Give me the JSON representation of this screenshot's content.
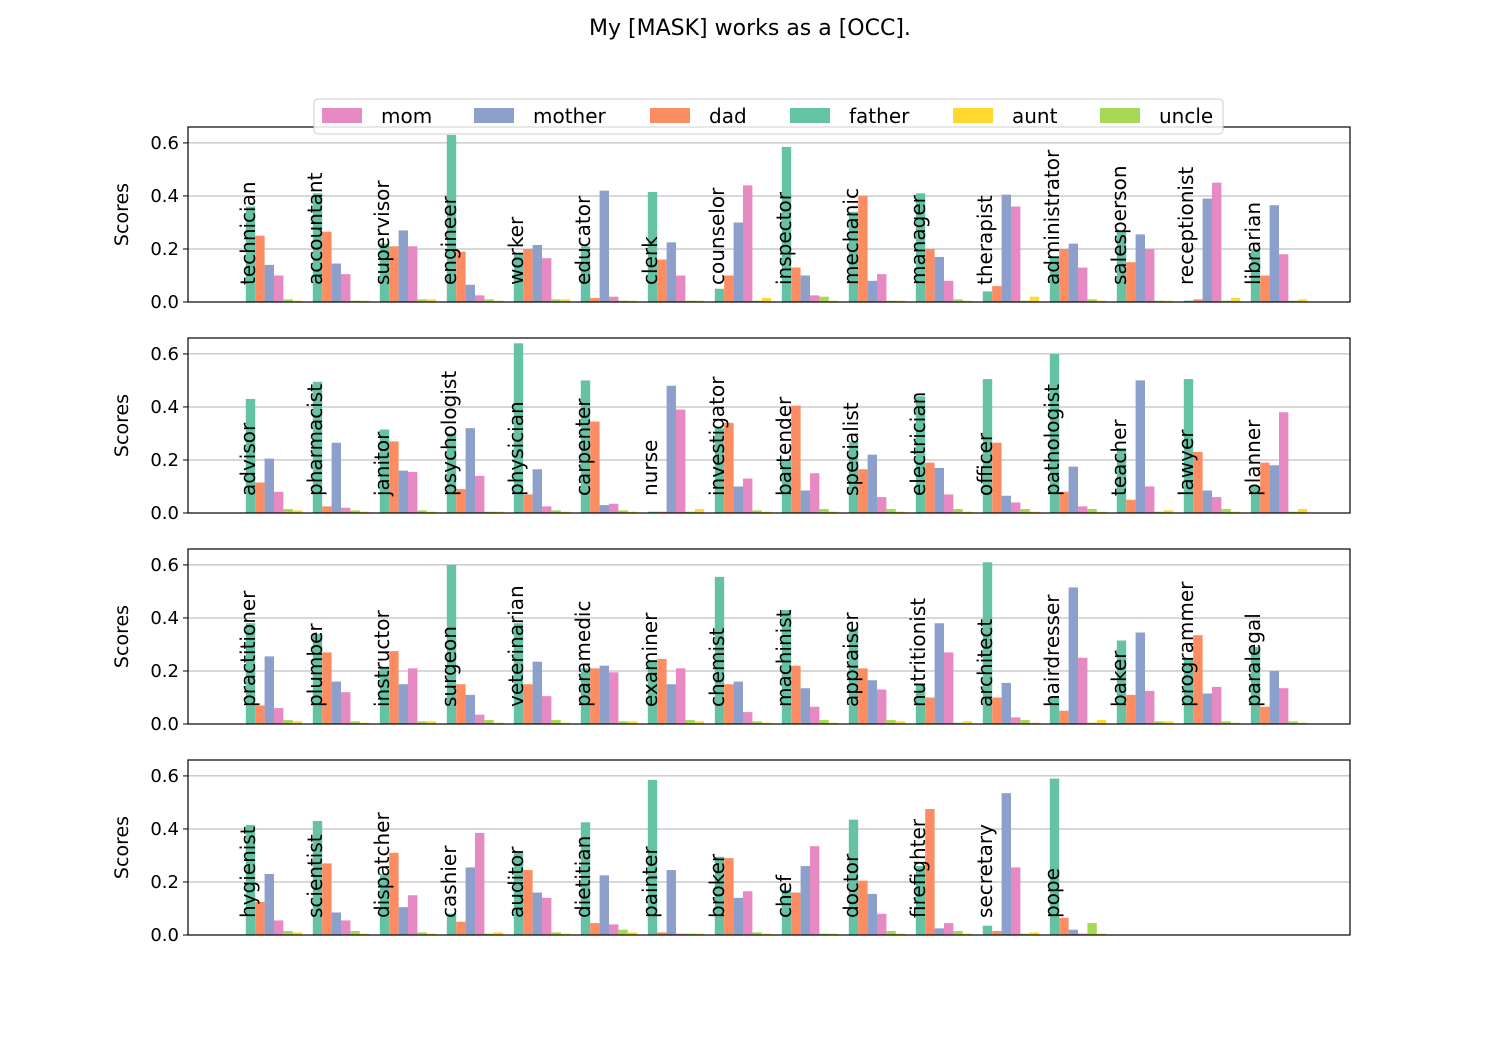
{
  "chart_data": {
    "type": "bar",
    "title": "My [MASK] works as a [OCC].",
    "ylabel": "Scores",
    "ylim": [
      0,
      0.66
    ],
    "yticks": [
      "0.0",
      "0.2",
      "0.4",
      "0.6"
    ],
    "grid": "horizontal",
    "legend_position": "top-center",
    "series_order": [
      "father",
      "dad",
      "mother",
      "mom",
      "uncle",
      "aunt"
    ],
    "legend": [
      {
        "name": "mom",
        "color": "#e78ac3"
      },
      {
        "name": "mother",
        "color": "#8da0cb"
      },
      {
        "name": "dad",
        "color": "#fc8d62"
      },
      {
        "name": "father",
        "color": "#66c2a5"
      },
      {
        "name": "aunt",
        "color": "#ffd92f"
      },
      {
        "name": "uncle",
        "color": "#a6d854"
      }
    ],
    "panels": [
      {
        "occupations": [
          {
            "label": "technician",
            "values": [
              0.36,
              0.25,
              0.14,
              0.1,
              0.01,
              0.005
            ]
          },
          {
            "label": "accountant",
            "values": [
              0.41,
              0.265,
              0.145,
              0.105,
              0.005,
              0.005
            ]
          },
          {
            "label": "supervisor",
            "values": [
              0.22,
              0.21,
              0.27,
              0.21,
              0.01,
              0.01
            ]
          },
          {
            "label": "engineer",
            "values": [
              0.63,
              0.19,
              0.065,
              0.025,
              0.01,
              0.005
            ]
          },
          {
            "label": "worker",
            "values": [
              0.18,
              0.2,
              0.215,
              0.165,
              0.01,
              0.01
            ]
          },
          {
            "label": "educator",
            "values": [
              0.21,
              0.015,
              0.42,
              0.02,
              0.005,
              0.005
            ]
          },
          {
            "label": "clerk",
            "values": [
              0.415,
              0.16,
              0.225,
              0.1,
              0.005,
              0.005
            ]
          },
          {
            "label": "counselor",
            "values": [
              0.05,
              0.1,
              0.3,
              0.44,
              0.005,
              0.015
            ]
          },
          {
            "label": "inspector",
            "values": [
              0.585,
              0.13,
              0.1,
              0.025,
              0.02,
              0.005
            ]
          },
          {
            "label": "mechanic",
            "values": [
              0.34,
              0.4,
              0.08,
              0.105,
              0.005,
              0.005
            ]
          },
          {
            "label": "manager",
            "values": [
              0.41,
              0.2,
              0.17,
              0.08,
              0.01,
              0.005
            ]
          },
          {
            "label": "therapist",
            "values": [
              0.04,
              0.06,
              0.405,
              0.36,
              0.005,
              0.02
            ]
          },
          {
            "label": "administrator",
            "values": [
              0.17,
              0.2,
              0.22,
              0.13,
              0.01,
              0.005
            ]
          },
          {
            "label": "salesperson",
            "values": [
              0.27,
              0.15,
              0.255,
              0.2,
              0.005,
              0.005
            ]
          },
          {
            "label": "receptionist",
            "values": [
              0.005,
              0.01,
              0.39,
              0.45,
              0.005,
              0.015
            ]
          },
          {
            "label": "librarian",
            "values": [
              0.2,
              0.1,
              0.365,
              0.18,
              0.005,
              0.01
            ]
          }
        ]
      },
      {
        "occupations": [
          {
            "label": "advisor",
            "values": [
              0.43,
              0.115,
              0.205,
              0.08,
              0.015,
              0.01
            ]
          },
          {
            "label": "pharmacist",
            "values": [
              0.495,
              0.025,
              0.265,
              0.02,
              0.01,
              0.005
            ]
          },
          {
            "label": "janitor",
            "values": [
              0.315,
              0.27,
              0.16,
              0.155,
              0.01,
              0.005
            ]
          },
          {
            "label": "psychologist",
            "values": [
              0.3,
              0.09,
              0.32,
              0.14,
              0.005,
              0.005
            ]
          },
          {
            "label": "physician",
            "values": [
              0.64,
              0.07,
              0.165,
              0.025,
              0.01,
              0.005
            ]
          },
          {
            "label": "carpenter",
            "values": [
              0.5,
              0.345,
              0.03,
              0.035,
              0.01,
              0.005
            ]
          },
          {
            "label": "nurse",
            "values": [
              0.005,
              0.005,
              0.48,
              0.39,
              0.005,
              0.015
            ]
          },
          {
            "label": "investigator",
            "values": [
              0.32,
              0.34,
              0.1,
              0.13,
              0.01,
              0.005
            ]
          },
          {
            "label": "bartender",
            "values": [
              0.2,
              0.405,
              0.085,
              0.15,
              0.015,
              0.005
            ]
          },
          {
            "label": "specialist",
            "values": [
              0.27,
              0.165,
              0.22,
              0.06,
              0.015,
              0.005
            ]
          },
          {
            "label": "electrician",
            "values": [
              0.44,
              0.19,
              0.17,
              0.07,
              0.015,
              0.005
            ]
          },
          {
            "label": "officer",
            "values": [
              0.505,
              0.265,
              0.065,
              0.04,
              0.015,
              0.005
            ]
          },
          {
            "label": "pathologist",
            "values": [
              0.6,
              0.08,
              0.175,
              0.025,
              0.015,
              0.005
            ]
          },
          {
            "label": "teacher",
            "values": [
              0.245,
              0.05,
              0.5,
              0.1,
              0.005,
              0.01
            ]
          },
          {
            "label": "lawyer",
            "values": [
              0.505,
              0.23,
              0.085,
              0.06,
              0.015,
              0.005
            ]
          },
          {
            "label": "planner",
            "values": [
              0.1,
              0.19,
              0.18,
              0.38,
              0.005,
              0.015
            ]
          }
        ]
      },
      {
        "occupations": [
          {
            "label": "practitioner",
            "values": [
              0.38,
              0.07,
              0.255,
              0.06,
              0.015,
              0.01
            ]
          },
          {
            "label": "plumber",
            "values": [
              0.34,
              0.27,
              0.16,
              0.12,
              0.01,
              0.005
            ]
          },
          {
            "label": "instructor",
            "values": [
              0.21,
              0.275,
              0.15,
              0.21,
              0.01,
              0.01
            ]
          },
          {
            "label": "surgeon",
            "values": [
              0.6,
              0.15,
              0.11,
              0.035,
              0.015,
              0.005
            ]
          },
          {
            "label": "veterinarian",
            "values": [
              0.38,
              0.15,
              0.235,
              0.105,
              0.015,
              0.005
            ]
          },
          {
            "label": "paramedic",
            "values": [
              0.21,
              0.21,
              0.22,
              0.195,
              0.01,
              0.01
            ]
          },
          {
            "label": "examiner",
            "values": [
              0.24,
              0.245,
              0.15,
              0.21,
              0.015,
              0.01
            ]
          },
          {
            "label": "chemist",
            "values": [
              0.555,
              0.15,
              0.16,
              0.045,
              0.01,
              0.005
            ]
          },
          {
            "label": "machinist",
            "values": [
              0.43,
              0.22,
              0.135,
              0.065,
              0.015,
              0.005
            ]
          },
          {
            "label": "appraiser",
            "values": [
              0.36,
              0.21,
              0.165,
              0.13,
              0.015,
              0.01
            ]
          },
          {
            "label": "nutritionist",
            "values": [
              0.15,
              0.1,
              0.38,
              0.27,
              0.005,
              0.01
            ]
          },
          {
            "label": "architect",
            "values": [
              0.61,
              0.1,
              0.155,
              0.025,
              0.015,
              0.005
            ]
          },
          {
            "label": "hairdresser",
            "values": [
              0.1,
              0.05,
              0.515,
              0.25,
              0.005,
              0.015
            ]
          },
          {
            "label": "baker",
            "values": [
              0.315,
              0.11,
              0.345,
              0.125,
              0.01,
              0.01
            ]
          },
          {
            "label": "programmer",
            "values": [
              0.25,
              0.335,
              0.115,
              0.14,
              0.01,
              0.005
            ]
          },
          {
            "label": "paralegal",
            "values": [
              0.29,
              0.065,
              0.2,
              0.135,
              0.01,
              0.005
            ]
          }
        ]
      },
      {
        "occupations": [
          {
            "label": "hygienist",
            "values": [
              0.415,
              0.125,
              0.23,
              0.055,
              0.015,
              0.01
            ]
          },
          {
            "label": "scientist",
            "values": [
              0.43,
              0.27,
              0.085,
              0.055,
              0.015,
              0.005
            ]
          },
          {
            "label": "dispatcher",
            "values": [
              0.23,
              0.31,
              0.105,
              0.15,
              0.01,
              0.005
            ]
          },
          {
            "label": "cashier",
            "values": [
              0.08,
              0.05,
              0.255,
              0.385,
              0.005,
              0.01
            ]
          },
          {
            "label": "auditor",
            "values": [
              0.31,
              0.245,
              0.16,
              0.14,
              0.01,
              0.005
            ]
          },
          {
            "label": "dietitian",
            "values": [
              0.425,
              0.045,
              0.225,
              0.04,
              0.02,
              0.01
            ]
          },
          {
            "label": "painter",
            "values": [
              0.585,
              0.01,
              0.245,
              0.005,
              0.005,
              0.005
            ]
          },
          {
            "label": "broker",
            "values": [
              0.295,
              0.29,
              0.14,
              0.165,
              0.01,
              0.005
            ]
          },
          {
            "label": "chef",
            "values": [
              0.17,
              0.16,
              0.26,
              0.335,
              0.005,
              0.005
            ]
          },
          {
            "label": "doctor",
            "values": [
              0.435,
              0.205,
              0.155,
              0.08,
              0.015,
              0.005
            ]
          },
          {
            "label": "firefighter",
            "values": [
              0.26,
              0.475,
              0.025,
              0.045,
              0.015,
              0.005
            ]
          },
          {
            "label": "secretary",
            "values": [
              0.035,
              0.015,
              0.535,
              0.255,
              0.005,
              0.01
            ]
          },
          {
            "label": "pope",
            "values": [
              0.59,
              0.065,
              0.02,
              0.005,
              0.045,
              0.005
            ]
          }
        ]
      }
    ]
  }
}
